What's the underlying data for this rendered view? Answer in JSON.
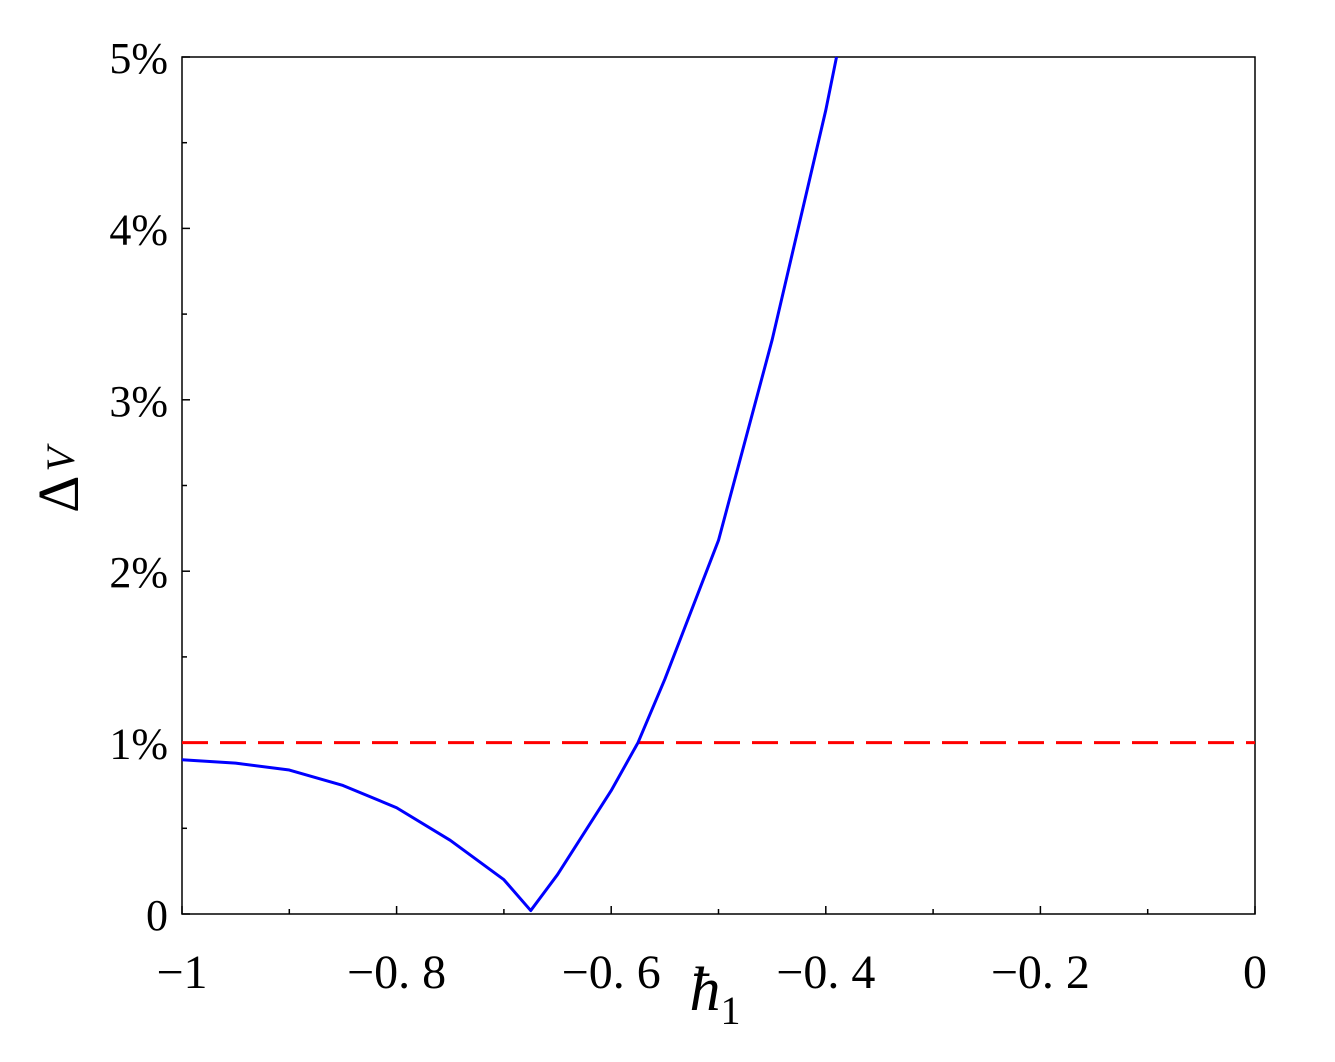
{
  "chart_data": {
    "type": "line",
    "x_label": {
      "main": "ħ",
      "sub": "1"
    },
    "y_label": {
      "main": "Δ",
      "sub": "V"
    },
    "xlim": [
      -1,
      0
    ],
    "ylim": [
      0,
      5
    ],
    "xticks": [
      {
        "value": -1,
        "label": "−1"
      },
      {
        "value": -0.8,
        "label": "−0. 8"
      },
      {
        "value": -0.6,
        "label": "−0. 6"
      },
      {
        "value": -0.4,
        "label": "−0. 4"
      },
      {
        "value": -0.2,
        "label": "−0. 2"
      },
      0
    ],
    "xminorticks": [
      -0.9,
      -0.7,
      -0.5,
      -0.3,
      -0.1
    ],
    "yticks": [
      0,
      {
        "value": 1,
        "label": "1%"
      },
      {
        "value": 2,
        "label": "2%"
      },
      {
        "value": 3,
        "label": "3%"
      },
      {
        "value": 4,
        "label": "4%"
      },
      {
        "value": 5,
        "label": "5%"
      }
    ],
    "yminorticks": [
      0.5,
      1.5,
      2.5,
      3.5,
      4.5
    ],
    "x": [
      -1,
      -0.95,
      -0.9,
      -0.85,
      -0.8,
      -0.75,
      -0.7,
      -0.675,
      -0.65,
      -0.6,
      -0.575,
      -0.55,
      -0.5,
      -0.45,
      -0.4,
      -0.39
    ],
    "series": [
      {
        "color": "#0000ff",
        "values": [
          0.9,
          0.88,
          0.84,
          0.75,
          0.62,
          0.43,
          0.2,
          0.02,
          0.23,
          0.72,
          1.0,
          1.37,
          2.18,
          3.35,
          4.69,
          5.0
        ]
      }
    ],
    "hlines": [
      {
        "y": 1,
        "color": "#ff0000",
        "dashed": true
      }
    ]
  }
}
